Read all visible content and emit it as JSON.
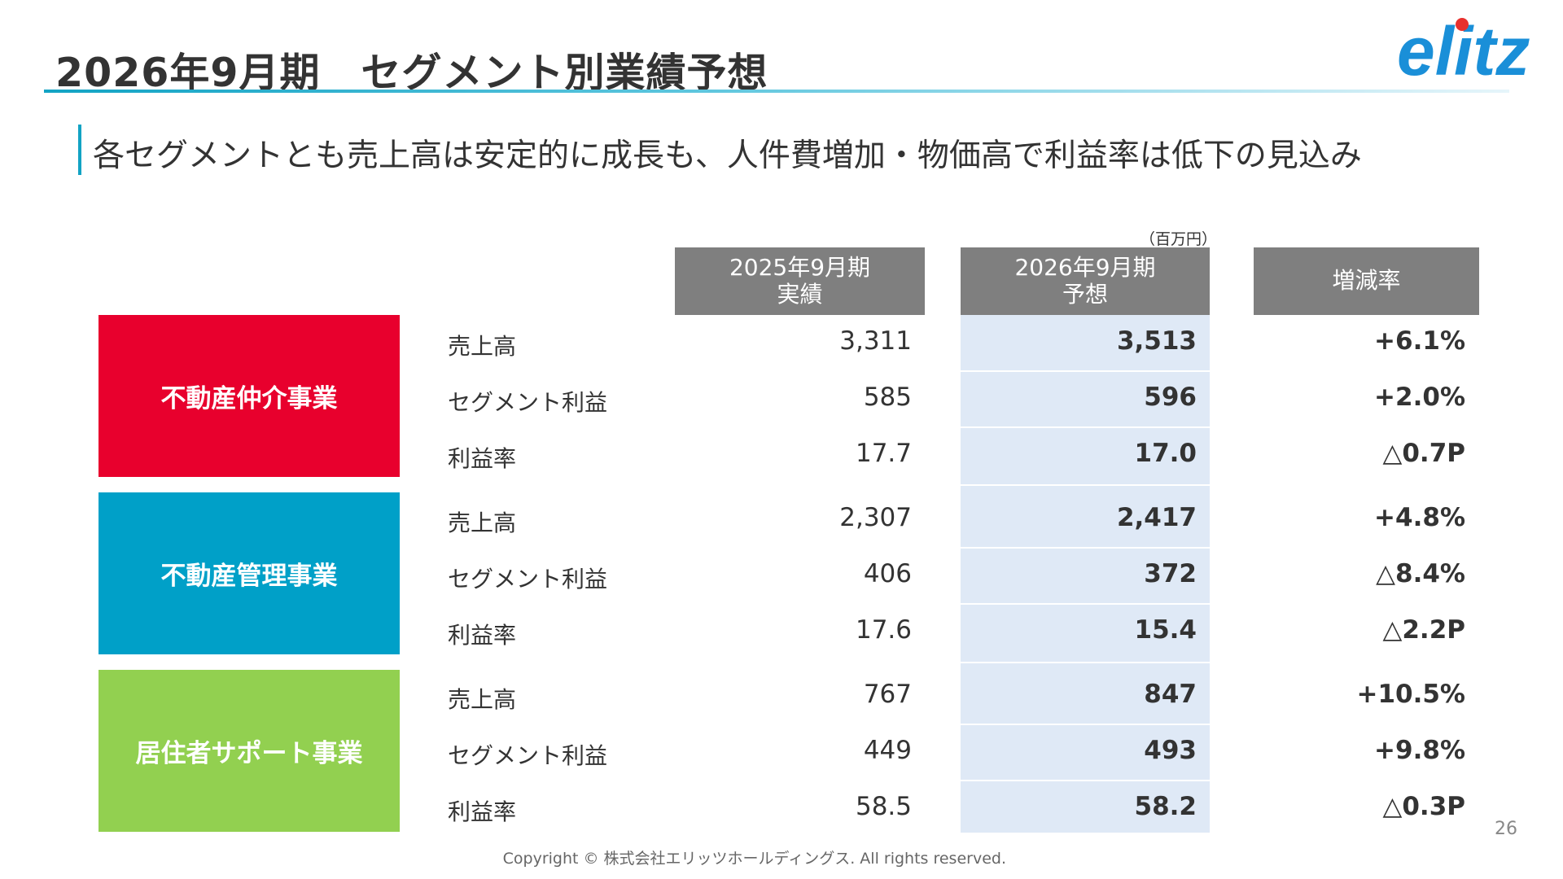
{
  "slide": {
    "title": "2026年9月期　セグメント別業績予想",
    "subtitle": "各セグメントとも売上高は安定的に成長も、人件費増加・物価高で利益率は低下の見込み",
    "unit": "（百万円）",
    "page_number": "26",
    "copyright": "Copyright © 株式会社エリッツホールディングス. All rights reserved.",
    "logo_text": "elitz"
  },
  "table": {
    "headers": {
      "actual_line1": "2025年9月期",
      "actual_line2": "実績",
      "forecast_line1": "2026年9月期",
      "forecast_line2": "予想",
      "change": "増減率"
    },
    "segments": [
      {
        "name": "不動産仲介事業",
        "color": "#e8002d",
        "rows": [
          {
            "label": "売上高",
            "actual": "3,311",
            "forecast": "3,513",
            "change": "+6.1%"
          },
          {
            "label": "セグメント利益",
            "actual": "585",
            "forecast": "596",
            "change": "+2.0%"
          },
          {
            "label": "利益率",
            "actual": "17.7",
            "forecast": "17.0",
            "change": "△0.7P"
          }
        ]
      },
      {
        "name": "不動産管理事業",
        "color": "#00a0c8",
        "rows": [
          {
            "label": "売上高",
            "actual": "2,307",
            "forecast": "2,417",
            "change": "+4.8%"
          },
          {
            "label": "セグメント利益",
            "actual": "406",
            "forecast": "372",
            "change": "△8.4%"
          },
          {
            "label": "利益率",
            "actual": "17.6",
            "forecast": "15.4",
            "change": "△2.2P"
          }
        ]
      },
      {
        "name": "居住者サポート事業",
        "color": "#92d050",
        "rows": [
          {
            "label": "売上高",
            "actual": "767",
            "forecast": "847",
            "change": "+10.5%"
          },
          {
            "label": "セグメント利益",
            "actual": "449",
            "forecast": "493",
            "change": "+9.8%"
          },
          {
            "label": "利益率",
            "actual": "58.5",
            "forecast": "58.2",
            "change": "△0.3P"
          }
        ]
      }
    ]
  }
}
